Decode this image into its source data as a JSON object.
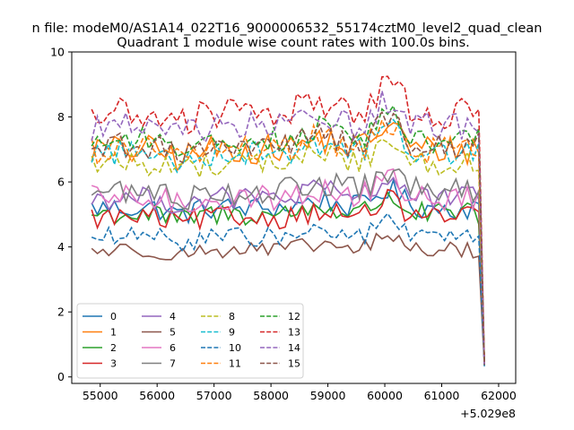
{
  "chart_data": {
    "type": "line",
    "suptitle": "n file: modeM0/AS1A14_022T16_9000006532_55174cztM0_level2_quad_clean",
    "title": "Quadrant 1 module wise count rates with 100.0s bins.",
    "xlabel": "",
    "ylabel": "",
    "x_offset_label": "+5.029e8",
    "xlim": [
      54500,
      62300
    ],
    "ylim": [
      -0.2,
      10.0
    ],
    "x_ticks": [
      55000,
      56000,
      57000,
      58000,
      59000,
      60000,
      61000,
      62000
    ],
    "x_tick_labels": [
      "55000",
      "56000",
      "57000",
      "58000",
      "59000",
      "60000",
      "61000",
      "62000"
    ],
    "y_ticks": [
      0,
      2,
      4,
      6,
      8,
      10
    ],
    "y_tick_labels": [
      "0",
      "2",
      "4",
      "6",
      "8",
      "10"
    ],
    "x_start": 54850,
    "x_step": 100,
    "n_points": 70,
    "x_end": 61750,
    "end_drop_value": 0.3,
    "legend": {
      "placement": "lower-left",
      "columns": 4
    },
    "series": [
      {
        "name": "0",
        "color": "#1f77b4",
        "dash": "solid",
        "base": 5.2,
        "amp": 0.35
      },
      {
        "name": "1",
        "color": "#ff7f0e",
        "dash": "solid",
        "base": 7.0,
        "amp": 0.45
      },
      {
        "name": "2",
        "color": "#2ca02c",
        "dash": "solid",
        "base": 5.0,
        "amp": 0.35
      },
      {
        "name": "3",
        "color": "#d62728",
        "dash": "solid",
        "base": 4.9,
        "amp": 0.35
      },
      {
        "name": "4",
        "color": "#9467bd",
        "dash": "solid",
        "base": 5.5,
        "amp": 0.35
      },
      {
        "name": "5",
        "color": "#8c564b",
        "dash": "solid",
        "base": 3.9,
        "amp": 0.25
      },
      {
        "name": "6",
        "color": "#e377c2",
        "dash": "solid",
        "base": 5.5,
        "amp": 0.4
      },
      {
        "name": "7",
        "color": "#7f7f7f",
        "dash": "solid",
        "base": 5.7,
        "amp": 0.4
      },
      {
        "name": "8",
        "color": "#bcbd22",
        "dash": "dashed",
        "base": 6.6,
        "amp": 0.4
      },
      {
        "name": "9",
        "color": "#17becf",
        "dash": "dashed",
        "base": 6.9,
        "amp": 0.4
      },
      {
        "name": "10",
        "color": "#1f77b4",
        "dash": "dashed",
        "base": 4.3,
        "amp": 0.3
      },
      {
        "name": "11",
        "color": "#ff7f0e",
        "dash": "dashed",
        "base": 7.0,
        "amp": 0.45
      },
      {
        "name": "12",
        "color": "#2ca02c",
        "dash": "dashed",
        "base": 7.3,
        "amp": 0.4
      },
      {
        "name": "13",
        "color": "#d62728",
        "dash": "dashed",
        "base": 8.1,
        "amp": 0.5
      },
      {
        "name": "14",
        "color": "#9467bd",
        "dash": "dashed",
        "base": 7.7,
        "amp": 0.45
      },
      {
        "name": "15",
        "color": "#8c564b",
        "dash": "dashed",
        "base": 7.1,
        "amp": 0.4
      }
    ]
  }
}
